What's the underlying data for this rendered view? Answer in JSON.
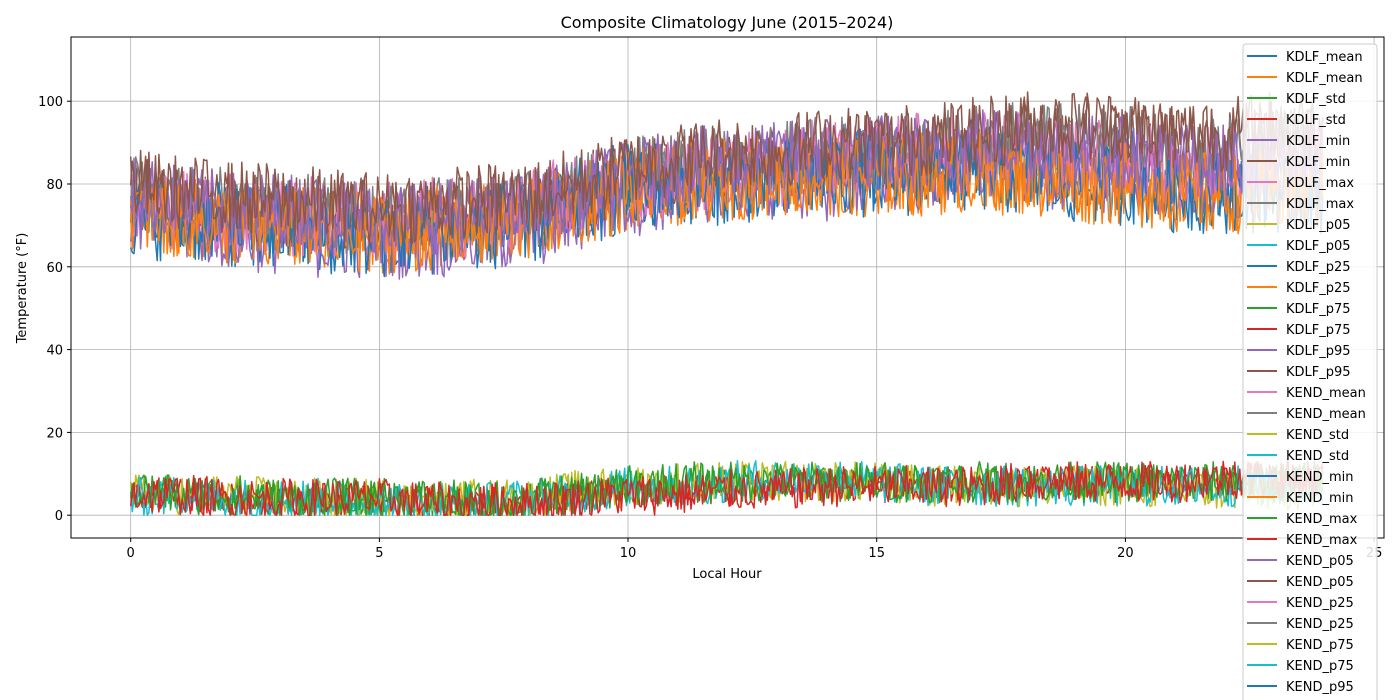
{
  "chart_data": {
    "type": "line",
    "title": "Composite Climatology June (2015–2024)",
    "xlabel": "Local Hour",
    "ylabel": "Temperature (°F)",
    "xlim": [
      -1.2,
      25.2
    ],
    "ylim": [
      -5.5,
      115.5
    ],
    "xticks": [
      0,
      5,
      10,
      15,
      20,
      25
    ],
    "yticks": [
      0,
      20,
      40,
      60,
      80,
      100
    ],
    "grid": true,
    "legend_position": "right",
    "series": [
      {
        "name": "KDLF_mean",
        "color": "#1f77b4",
        "group": "temp",
        "base": [
          74,
          72,
          70,
          70,
          69,
          68,
          70,
          70,
          72,
          78,
          80,
          80,
          82,
          82,
          84,
          84,
          85,
          86,
          84,
          82,
          84,
          80,
          80,
          82,
          80
        ],
        "amp": 10
      },
      {
        "name": "KDLF_mean",
        "color": "#ff7f0e",
        "group": "temp",
        "base": [
          74,
          72,
          71,
          70,
          69,
          68,
          69,
          70,
          72,
          76,
          79,
          80,
          82,
          82,
          82,
          82,
          83,
          84,
          84,
          82,
          82,
          80,
          78,
          80,
          80
        ],
        "amp": 10
      },
      {
        "name": "KDLF_std",
        "color": "#2ca02c",
        "group": "std",
        "base": [
          6,
          5,
          5,
          4,
          4,
          4,
          3,
          3,
          4,
          5,
          6,
          7,
          7,
          8,
          8,
          8,
          8,
          8,
          8,
          8,
          8,
          8,
          8,
          8,
          8
        ],
        "amp": 4
      },
      {
        "name": "KDLF_std",
        "color": "#d62728",
        "group": "std",
        "base": [
          5,
          5,
          4,
          4,
          4,
          3,
          3,
          3,
          3,
          4,
          5,
          6,
          6,
          7,
          7,
          7,
          7,
          7,
          8,
          8,
          8,
          8,
          9,
          9,
          8
        ],
        "amp": 4
      },
      {
        "name": "KDLF_min",
        "color": "#9467bd",
        "group": "temp",
        "base": [
          72,
          70,
          68,
          67,
          66,
          66,
          66,
          67,
          68,
          72,
          76,
          78,
          80,
          80,
          80,
          82,
          82,
          84,
          84,
          82,
          82,
          80,
          80,
          80,
          80
        ],
        "amp": 9
      },
      {
        "name": "KDLF_min",
        "color": "#8c564b",
        "group": "temp",
        "base": [
          78,
          76,
          74,
          74,
          73,
          72,
          74,
          74,
          75,
          78,
          82,
          84,
          86,
          86,
          88,
          88,
          88,
          90,
          92,
          92,
          92,
          90,
          90,
          92,
          92
        ],
        "amp": 9
      },
      {
        "name": "KDLF_max",
        "color": "#e377c2",
        "group": "temp",
        "base": [
          76,
          74,
          73,
          72,
          72,
          71,
          72,
          72,
          74,
          78,
          80,
          82,
          84,
          84,
          86,
          86,
          88,
          88,
          88,
          86,
          86,
          84,
          84,
          86,
          86
        ],
        "amp": 10
      },
      {
        "name": "KDLF_max",
        "color": "#7f7f7f",
        "group": "temp",
        "base": [
          78,
          76,
          75,
          74,
          73,
          72,
          73,
          74,
          75,
          78,
          82,
          84,
          85,
          86,
          88,
          88,
          89,
          90,
          92,
          90,
          90,
          88,
          88,
          90,
          90
        ],
        "amp": 9
      },
      {
        "name": "KDLF_p05",
        "color": "#bcbd22",
        "group": "std",
        "base": [
          5,
          5,
          5,
          4,
          4,
          4,
          3,
          4,
          4,
          6,
          7,
          8,
          8,
          8,
          8,
          8,
          7,
          7,
          7,
          7,
          7,
          6,
          6,
          6,
          6
        ],
        "amp": 5
      },
      {
        "name": "KDLF_p05",
        "color": "#17becf",
        "group": "std",
        "base": [
          4,
          5,
          4,
          4,
          4,
          3,
          3,
          3,
          4,
          5,
          7,
          7,
          8,
          9,
          9,
          8,
          7,
          7,
          7,
          7,
          7,
          7,
          7,
          7,
          7
        ],
        "amp": 5
      },
      {
        "name": "KDLF_p25",
        "color": "#1f77b4",
        "group": "temp",
        "base": [
          72,
          71,
          70,
          69,
          68,
          67,
          68,
          69,
          70,
          74,
          78,
          80,
          80,
          81,
          82,
          82,
          82,
          83,
          82,
          80,
          80,
          78,
          78,
          78,
          78
        ],
        "amp": 10
      },
      {
        "name": "KDLF_p25",
        "color": "#ff7f0e",
        "group": "temp",
        "base": [
          73,
          72,
          70,
          70,
          69,
          68,
          69,
          70,
          71,
          75,
          78,
          80,
          81,
          82,
          82,
          82,
          82,
          83,
          82,
          80,
          80,
          78,
          78,
          78,
          78
        ],
        "amp": 10
      },
      {
        "name": "KDLF_p75",
        "color": "#2ca02c",
        "group": "std",
        "base": [
          6,
          5,
          5,
          4,
          4,
          4,
          4,
          3,
          4,
          5,
          7,
          8,
          8,
          8,
          8,
          8,
          8,
          8,
          8,
          8,
          8,
          8,
          8,
          8,
          8
        ],
        "amp": 5
      },
      {
        "name": "KDLF_p75",
        "color": "#d62728",
        "group": "std",
        "base": [
          5,
          5,
          4,
          4,
          4,
          4,
          3,
          3,
          3,
          4,
          5,
          5,
          6,
          6,
          7,
          7,
          7,
          7,
          8,
          8,
          8,
          8,
          9,
          9,
          9
        ],
        "amp": 5
      },
      {
        "name": "KDLF_p95",
        "color": "#9467bd",
        "group": "temp",
        "base": [
          78,
          76,
          74,
          74,
          73,
          72,
          72,
          73,
          74,
          78,
          82,
          84,
          86,
          86,
          88,
          88,
          88,
          90,
          90,
          88,
          88,
          86,
          86,
          88,
          88
        ],
        "amp": 9
      },
      {
        "name": "KDLF_p95",
        "color": "#8c564b",
        "group": "temp",
        "base": [
          80,
          78,
          77,
          76,
          75,
          74,
          75,
          76,
          77,
          80,
          84,
          86,
          88,
          88,
          90,
          90,
          91,
          92,
          94,
          94,
          94,
          92,
          92,
          94,
          94
        ],
        "amp": 9
      },
      {
        "name": "KEND_mean",
        "color": "#e377c2",
        "group": "none",
        "base": [],
        "amp": 0
      },
      {
        "name": "KEND_mean",
        "color": "#7f7f7f",
        "group": "none",
        "base": [],
        "amp": 0
      },
      {
        "name": "KEND_std",
        "color": "#bcbd22",
        "group": "none",
        "base": [],
        "amp": 0
      },
      {
        "name": "KEND_std",
        "color": "#17becf",
        "group": "none",
        "base": [],
        "amp": 0
      },
      {
        "name": "KEND_min",
        "color": "#1f77b4",
        "group": "none",
        "base": [],
        "amp": 0
      },
      {
        "name": "KEND_min",
        "color": "#ff7f0e",
        "group": "none",
        "base": [],
        "amp": 0
      },
      {
        "name": "KEND_max",
        "color": "#2ca02c",
        "group": "none",
        "base": [],
        "amp": 0
      },
      {
        "name": "KEND_max",
        "color": "#d62728",
        "group": "none",
        "base": [],
        "amp": 0
      },
      {
        "name": "KEND_p05",
        "color": "#9467bd",
        "group": "none",
        "base": [],
        "amp": 0
      },
      {
        "name": "KEND_p05",
        "color": "#8c564b",
        "group": "none",
        "base": [],
        "amp": 0
      },
      {
        "name": "KEND_p25",
        "color": "#e377c2",
        "group": "none",
        "base": [],
        "amp": 0
      },
      {
        "name": "KEND_p25",
        "color": "#7f7f7f",
        "group": "none",
        "base": [],
        "amp": 0
      },
      {
        "name": "KEND_p75",
        "color": "#bcbd22",
        "group": "none",
        "base": [],
        "amp": 0
      },
      {
        "name": "KEND_p75",
        "color": "#17becf",
        "group": "none",
        "base": [],
        "amp": 0
      },
      {
        "name": "KEND_p95",
        "color": "#1f77b4",
        "group": "none",
        "base": [],
        "amp": 0
      }
    ]
  }
}
